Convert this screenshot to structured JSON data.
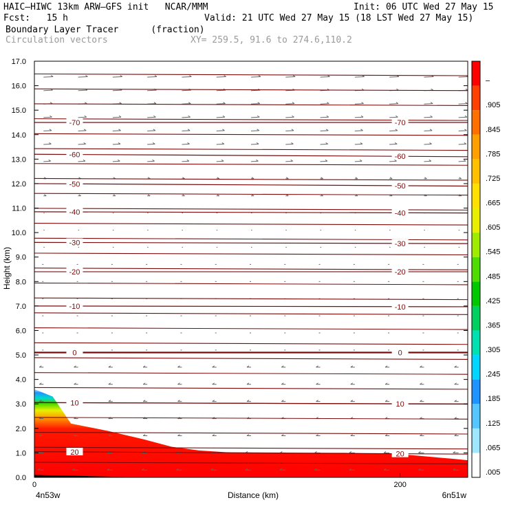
{
  "header": {
    "model_line": "HAIC–HIWC 13km ARW–GFS init   NCAR/MMM",
    "init_line": "Init: 06 UTC Wed 27 May 15",
    "fcst_line": "Fcst:   15 h",
    "valid_line": "Valid: 21 UTC Wed 27 May 15 (18 LST Wed 27 May 15)",
    "field_line": "Boundary Layer Tracer      (fraction)",
    "vector_line": "Circulation vectors",
    "xy_line": "XY= 259.5, 91.6 to 274.6,110.2"
  },
  "chart_data": {
    "type": "cross-section",
    "xlabel": "Distance (km)",
    "ylabel": "Height (km)",
    "xlim": [
      0,
      237
    ],
    "ylim": [
      0,
      17
    ],
    "x_ticks": [
      "0",
      "200"
    ],
    "x_tick_values": [
      0,
      200
    ],
    "x_end_labels": {
      "left": "4n53w",
      "right": "6n51w"
    },
    "y_ticks": [
      "0.0",
      "1.0",
      "2.0",
      "3.0",
      "4.0",
      "5.0",
      "6.0",
      "7.0",
      "8.0",
      "9.0",
      "10.0",
      "11.0",
      "12.0",
      "13.0",
      "14.0",
      "15.0",
      "16.0",
      "17.0"
    ],
    "colorbar": {
      "labels": [
        ".005",
        ".065",
        ".125",
        ".185",
        ".245",
        ".305",
        ".365",
        ".425",
        ".485",
        ".545",
        ".605",
        ".665",
        ".725",
        ".785",
        ".845",
        ".905",
        "–"
      ],
      "colors": [
        "#ffffff",
        "#9ee7ff",
        "#55c6ff",
        "#1f93ff",
        "#00d6ff",
        "#00e0b0",
        "#00d060",
        "#00c800",
        "#50dc00",
        "#a0ec00",
        "#e8f000",
        "#ffe000",
        "#ffc000",
        "#ffa000",
        "#ff7000",
        "#ff4000",
        "#ff0000"
      ]
    },
    "temperature_contours": [
      {
        "label": "20",
        "z_left": 1.05,
        "z_right": 0.95
      },
      {
        "label": "10",
        "z_left": 3.05,
        "z_right": 3.0
      },
      {
        "label": "0",
        "z_left": 5.1,
        "z_right": 5.1
      },
      {
        "label": "-10",
        "z_left": 7.0,
        "z_right": 6.97
      },
      {
        "label": "-20",
        "z_left": 8.4,
        "z_right": 8.4
      },
      {
        "label": "-30",
        "z_left": 9.6,
        "z_right": 9.55
      },
      {
        "label": "-40",
        "z_left": 10.85,
        "z_right": 10.8
      },
      {
        "label": "-50",
        "z_left": 12.0,
        "z_right": 11.9
      },
      {
        "label": "-60",
        "z_left": 13.2,
        "z_right": 13.1
      },
      {
        "label": "-70",
        "z_left": 14.5,
        "z_right": 14.5
      }
    ],
    "boundary_layer_top_km": [
      [
        0,
        3.6
      ],
      [
        10,
        3.3
      ],
      [
        20,
        2.2
      ],
      [
        40,
        1.9
      ],
      [
        60,
        1.55
      ],
      [
        75,
        1.25
      ],
      [
        90,
        1.1
      ],
      [
        110,
        1.0
      ],
      [
        140,
        1.0
      ],
      [
        170,
        1.0
      ],
      [
        200,
        0.95
      ],
      [
        230,
        0.75
      ],
      [
        237,
        0.7
      ]
    ]
  }
}
